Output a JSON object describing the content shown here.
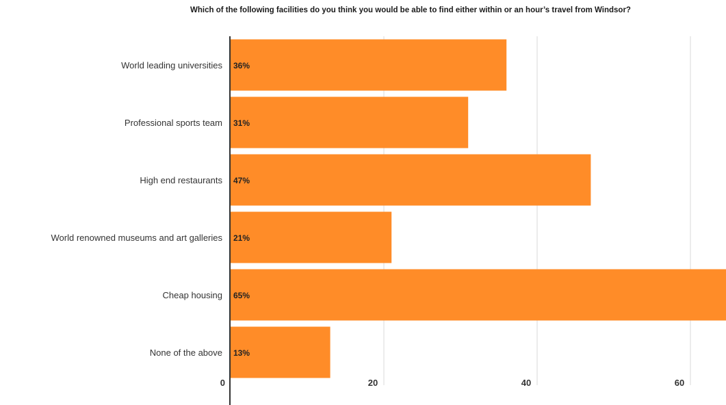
{
  "chart_data": {
    "type": "bar",
    "orientation": "horizontal",
    "title": "Which of the following facilities do you think you would be able to find either within or an hour’s travel from Windsor?",
    "xlabel": "",
    "ylabel": "",
    "categories": [
      "World leading universities",
      "Professional sports team",
      "High end restaurants",
      "World renowned museums and art galleries",
      "Cheap housing",
      "None of the above"
    ],
    "values": [
      36,
      31,
      47,
      21,
      65,
      13
    ],
    "data_labels": [
      "36%",
      "31%",
      "47%",
      "21%",
      "65%",
      "13%"
    ],
    "xlim": [
      0,
      65
    ],
    "x_ticks": [
      0,
      20,
      40,
      60
    ],
    "x_tick_labels": [
      "0",
      "20",
      "40",
      "60"
    ],
    "grid": "vertical",
    "legend": "none",
    "colors": {
      "bar": "#FF8C28",
      "grid": "#d9d9d9",
      "axis": "#333333"
    }
  }
}
